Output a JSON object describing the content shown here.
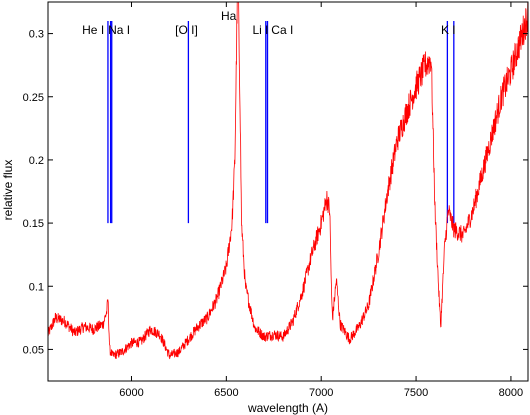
{
  "chart_data": {
    "type": "line",
    "xlabel": "wavelength (A)",
    "ylabel": "relative flux",
    "xlim": [
      5560,
      8090
    ],
    "ylim": [
      0.025,
      0.325
    ],
    "xticks": [
      6000,
      6500,
      7000,
      7500,
      8000
    ],
    "yticks": [
      0.05,
      0.1,
      0.15,
      0.2,
      0.25,
      0.3
    ],
    "xtick_labels": [
      "6000",
      "6500",
      "7000",
      "7500",
      "8000"
    ],
    "ytick_labels": [
      "0.05",
      "0.1",
      "0.15",
      "0.2",
      "0.25",
      "0.3"
    ],
    "grid": false,
    "colors": {
      "spectrum": "#ff0000",
      "lines": "#0000ff",
      "axes": "#000000"
    },
    "spectral_lines": [
      {
        "label": "He I",
        "x": [
          5876
        ]
      },
      {
        "label": "Na I",
        "x": [
          5890,
          5896
        ]
      },
      {
        "label": "[O I]",
        "x": [
          6300
        ]
      },
      {
        "label": "Ha",
        "x": []
      },
      {
        "label": "Li I",
        "x": [
          6708
        ]
      },
      {
        "label": "Ca I",
        "x": [
          6717
        ]
      },
      {
        "label": "K I",
        "x": [
          7665,
          7699
        ]
      }
    ],
    "line_y_range": [
      0.15,
      0.31
    ],
    "series": [
      {
        "x": [
          5560,
          5600,
          5650,
          5700,
          5750,
          5800,
          5850,
          5870,
          5876,
          5885,
          5900,
          5950,
          6000,
          6050,
          6100,
          6150,
          6200,
          6250,
          6300,
          6350,
          6400,
          6450,
          6500,
          6530,
          6545,
          6552,
          6558,
          6562,
          6566,
          6572,
          6580,
          6600,
          6650,
          6700,
          6750,
          6800,
          6850,
          6900,
          6950,
          7000,
          7030,
          7045,
          7055,
          7060,
          7080,
          7100,
          7150,
          7200,
          7250,
          7300,
          7350,
          7400,
          7450,
          7500,
          7550,
          7580,
          7600,
          7620,
          7630,
          7650,
          7670,
          7700,
          7750,
          7800,
          7850,
          7900,
          7950,
          8000,
          8050,
          8090
        ],
        "y": [
          0.062,
          0.075,
          0.072,
          0.063,
          0.068,
          0.066,
          0.07,
          0.08,
          0.09,
          0.05,
          0.045,
          0.048,
          0.055,
          0.056,
          0.066,
          0.062,
          0.045,
          0.048,
          0.058,
          0.068,
          0.075,
          0.09,
          0.115,
          0.15,
          0.2,
          0.27,
          0.33,
          0.34,
          0.3,
          0.25,
          0.15,
          0.1,
          0.067,
          0.06,
          0.062,
          0.06,
          0.072,
          0.095,
          0.125,
          0.15,
          0.17,
          0.16,
          0.09,
          0.075,
          0.105,
          0.07,
          0.058,
          0.068,
          0.085,
          0.125,
          0.175,
          0.215,
          0.238,
          0.258,
          0.275,
          0.28,
          0.16,
          0.095,
          0.068,
          0.13,
          0.16,
          0.145,
          0.14,
          0.16,
          0.19,
          0.22,
          0.25,
          0.27,
          0.295,
          0.315
        ]
      }
    ]
  }
}
